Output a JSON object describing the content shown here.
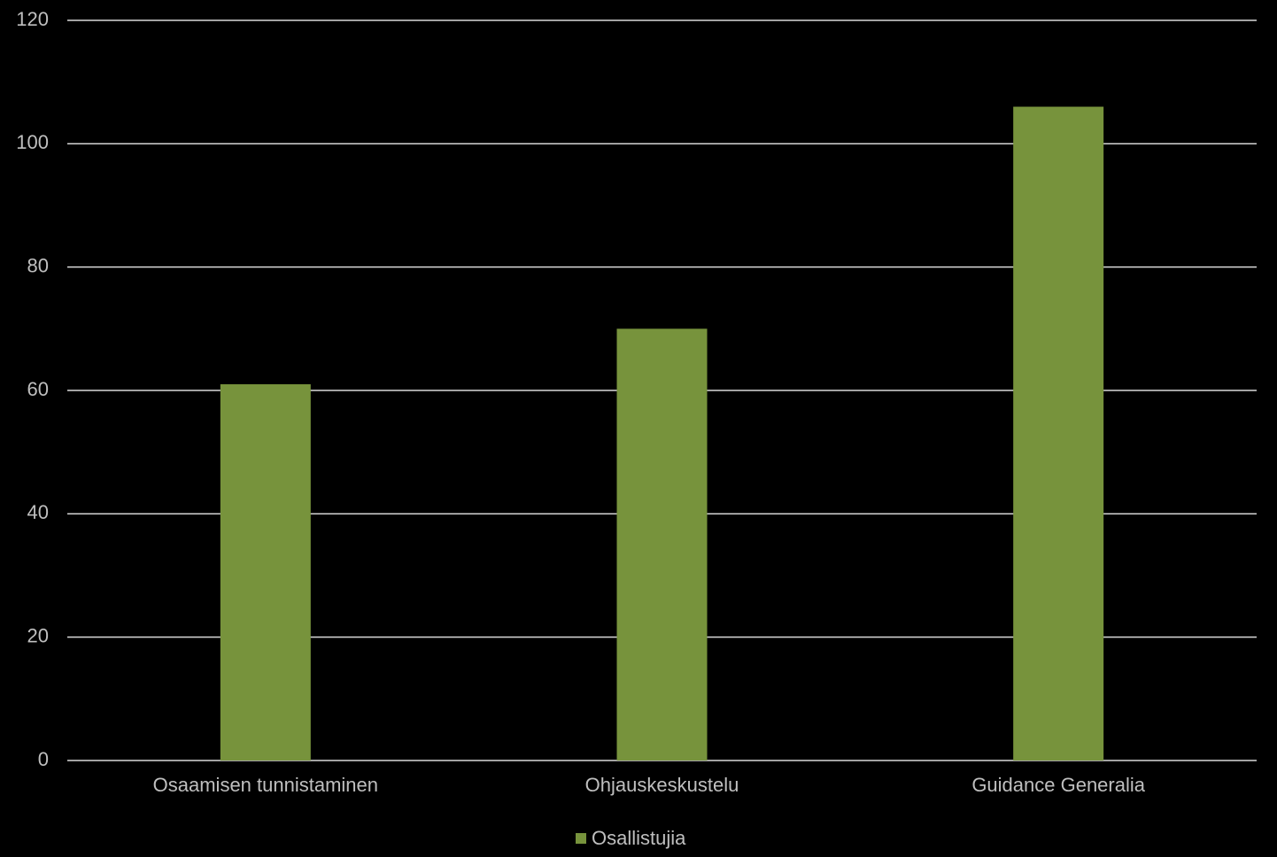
{
  "chart_data": {
    "type": "bar",
    "categories": [
      "Osaamisen tunnistaminen",
      "Ohjauskeskustelu",
      "Guidance Generalia"
    ],
    "series": [
      {
        "name": "Osallistujia",
        "color": "#77933c",
        "values": [
          61,
          70,
          106
        ]
      }
    ],
    "ylim": [
      0,
      120
    ],
    "yticks": [
      0,
      20,
      40,
      60,
      80,
      100,
      120
    ],
    "grid": true,
    "legend": "bottom"
  }
}
